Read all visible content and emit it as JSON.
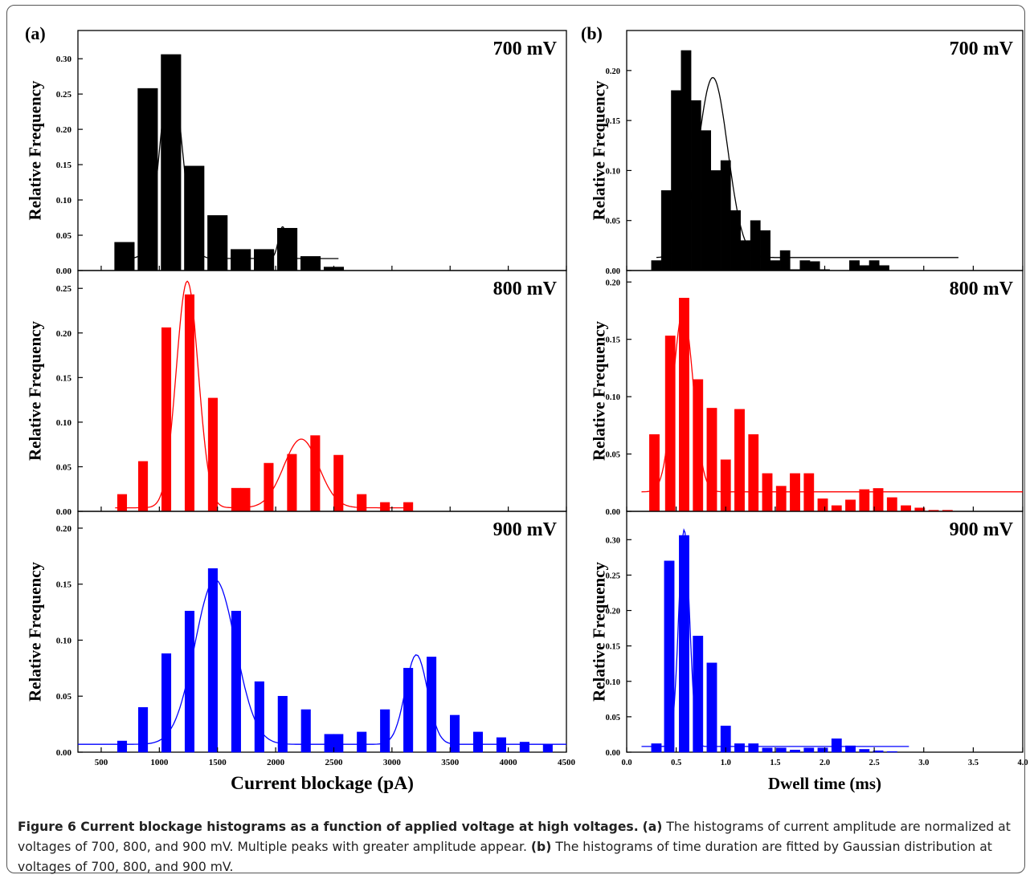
{
  "chart_data": [
    {
      "panel_label": "(a)",
      "type": "bar",
      "xlabel": "Current blockage (pA)",
      "ylabel": "Relative Frequency",
      "xlim": [
        300,
        4500
      ],
      "xticks": [
        500,
        1000,
        1500,
        2000,
        2500,
        3000,
        3500,
        4000,
        4500
      ],
      "subplots": [
        {
          "label": "700 mV",
          "color": "#000000",
          "ylim": [
            0,
            0.34
          ],
          "yticks": [
            "0.00",
            "0.05",
            "0.10",
            "0.15",
            "0.20",
            "0.25",
            "0.30"
          ],
          "bar_width": 170,
          "bars": [
            {
              "x": 700,
              "y": 0.04
            },
            {
              "x": 900,
              "y": 0.258
            },
            {
              "x": 1100,
              "y": 0.306
            },
            {
              "x": 1300,
              "y": 0.148
            },
            {
              "x": 1500,
              "y": 0.078
            },
            {
              "x": 1700,
              "y": 0.03
            },
            {
              "x": 1900,
              "y": 0.03
            },
            {
              "x": 2100,
              "y": 0.06
            },
            {
              "x": 2300,
              "y": 0.02
            },
            {
              "x": 2500,
              "y": 0.005
            }
          ],
          "fit": {
            "y0": 0.017,
            "xmin": 700,
            "xmax": 2540,
            "peaks": [
              {
                "A": 0.265,
                "xc": 1100,
                "w": 190
              },
              {
                "A": 0.045,
                "xc": 2060,
                "w": 70
              }
            ]
          }
        },
        {
          "label": "800 mV",
          "color": "#ff0000",
          "ylim": [
            0,
            0.27
          ],
          "yticks": [
            "0.00",
            "0.05",
            "0.10",
            "0.15",
            "0.20",
            "0.25"
          ],
          "bar_width": 80,
          "bars": [
            {
              "x": 680,
              "y": 0.019
            },
            {
              "x": 860,
              "y": 0.056
            },
            {
              "x": 1060,
              "y": 0.206
            },
            {
              "x": 1260,
              "y": 0.243
            },
            {
              "x": 1460,
              "y": 0.127
            },
            {
              "x": 1660,
              "y": 0.026
            },
            {
              "x": 1740,
              "y": 0.026
            },
            {
              "x": 1940,
              "y": 0.054
            },
            {
              "x": 2140,
              "y": 0.064
            },
            {
              "x": 2340,
              "y": 0.085
            },
            {
              "x": 2540,
              "y": 0.063
            },
            {
              "x": 2740,
              "y": 0.019
            },
            {
              "x": 2940,
              "y": 0.01
            },
            {
              "x": 3140,
              "y": 0.01
            }
          ],
          "fit": {
            "y0": 0.004,
            "xmin": 620,
            "xmax": 3100,
            "peaks": [
              {
                "A": 0.254,
                "xc": 1240,
                "w": 190
              },
              {
                "A": 0.077,
                "xc": 2220,
                "w": 300
              }
            ]
          }
        },
        {
          "label": "900 mV",
          "color": "#0000ff",
          "ylim": [
            0,
            0.215
          ],
          "yticks": [
            "0.00",
            "0.05",
            "0.10",
            "0.15",
            "0.20"
          ],
          "bar_width": 80,
          "bars": [
            {
              "x": 680,
              "y": 0.01
            },
            {
              "x": 860,
              "y": 0.04
            },
            {
              "x": 1060,
              "y": 0.088
            },
            {
              "x": 1260,
              "y": 0.126
            },
            {
              "x": 1460,
              "y": 0.164
            },
            {
              "x": 1660,
              "y": 0.126
            },
            {
              "x": 1860,
              "y": 0.063
            },
            {
              "x": 2060,
              "y": 0.05
            },
            {
              "x": 2260,
              "y": 0.038
            },
            {
              "x": 2460,
              "y": 0.016
            },
            {
              "x": 2540,
              "y": 0.016
            },
            {
              "x": 2740,
              "y": 0.018
            },
            {
              "x": 2940,
              "y": 0.038
            },
            {
              "x": 3140,
              "y": 0.075
            },
            {
              "x": 3340,
              "y": 0.085
            },
            {
              "x": 3540,
              "y": 0.033
            },
            {
              "x": 3740,
              "y": 0.018
            },
            {
              "x": 3940,
              "y": 0.013
            },
            {
              "x": 4140,
              "y": 0.009
            },
            {
              "x": 4340,
              "y": 0.007
            }
          ],
          "fit": {
            "y0": 0.007,
            "xmin": 300,
            "xmax": 4500,
            "peaks": [
              {
                "A": 0.147,
                "xc": 1480,
                "w": 350
              },
              {
                "A": 0.08,
                "xc": 3210,
                "w": 190
              }
            ]
          }
        }
      ]
    },
    {
      "panel_label": "(b)",
      "type": "bar",
      "xlabel": "Dwell time (ms)",
      "ylabel": "Relative Frequency",
      "xlim": [
        0.0,
        4.0
      ],
      "xticks": [
        "0.0",
        "0.5",
        "1.0",
        "1.5",
        "2.0",
        "2.5",
        "3.0",
        "3.5",
        "4.0"
      ],
      "subplots": [
        {
          "label": "700 mV",
          "color": "#000000",
          "ylim": [
            0,
            0.24
          ],
          "yticks": [
            "0.00",
            "0.05",
            "0.10",
            "0.15",
            "0.20"
          ],
          "bar_width": 0.1,
          "bars": [
            {
              "x": 0.3,
              "y": 0.01
            },
            {
              "x": 0.4,
              "y": 0.08
            },
            {
              "x": 0.5,
              "y": 0.18
            },
            {
              "x": 0.6,
              "y": 0.22
            },
            {
              "x": 0.7,
              "y": 0.17
            },
            {
              "x": 0.8,
              "y": 0.14
            },
            {
              "x": 0.9,
              "y": 0.1
            },
            {
              "x": 1.0,
              "y": 0.11
            },
            {
              "x": 1.1,
              "y": 0.06
            },
            {
              "x": 1.2,
              "y": 0.03
            },
            {
              "x": 1.3,
              "y": 0.05
            },
            {
              "x": 1.4,
              "y": 0.04
            },
            {
              "x": 1.5,
              "y": 0.01
            },
            {
              "x": 1.6,
              "y": 0.02
            },
            {
              "x": 1.7,
              "y": 0.001
            },
            {
              "x": 1.8,
              "y": 0.01
            },
            {
              "x": 1.9,
              "y": 0.009
            },
            {
              "x": 2.0,
              "y": 0.001
            },
            {
              "x": 2.1,
              "y": 0.0
            },
            {
              "x": 2.2,
              "y": 0.0
            },
            {
              "x": 2.3,
              "y": 0.01
            },
            {
              "x": 2.4,
              "y": 0.005
            },
            {
              "x": 2.5,
              "y": 0.01
            },
            {
              "x": 2.6,
              "y": 0.005
            }
          ],
          "fit": {
            "y0": 0.013,
            "xmin": 0.3,
            "xmax": 3.35,
            "peaks": [
              {
                "A": 0.18,
                "xc": 0.87,
                "w": 0.3
              }
            ]
          }
        },
        {
          "label": "800 mV",
          "color": "#ff0000",
          "ylim": [
            0,
            0.21
          ],
          "yticks": [
            "0.00",
            "0.05",
            "0.10",
            "0.15",
            "0.20"
          ],
          "bar_width": 0.1,
          "bars": [
            {
              "x": 0.28,
              "y": 0.067
            },
            {
              "x": 0.44,
              "y": 0.153
            },
            {
              "x": 0.58,
              "y": 0.186
            },
            {
              "x": 0.72,
              "y": 0.115
            },
            {
              "x": 0.86,
              "y": 0.09
            },
            {
              "x": 1.0,
              "y": 0.045
            },
            {
              "x": 1.14,
              "y": 0.089
            },
            {
              "x": 1.28,
              "y": 0.067
            },
            {
              "x": 1.42,
              "y": 0.033
            },
            {
              "x": 1.56,
              "y": 0.022
            },
            {
              "x": 1.7,
              "y": 0.033
            },
            {
              "x": 1.84,
              "y": 0.033
            },
            {
              "x": 1.98,
              "y": 0.011
            },
            {
              "x": 2.12,
              "y": 0.005
            },
            {
              "x": 2.26,
              "y": 0.01
            },
            {
              "x": 2.4,
              "y": 0.019
            },
            {
              "x": 2.54,
              "y": 0.02
            },
            {
              "x": 2.68,
              "y": 0.012
            },
            {
              "x": 2.82,
              "y": 0.005
            },
            {
              "x": 2.96,
              "y": 0.003
            },
            {
              "x": 3.1,
              "y": 0.001
            },
            {
              "x": 3.24,
              "y": 0.001
            }
          ],
          "fit": {
            "y0": 0.017,
            "xmin": 0.15,
            "xmax": 4.0,
            "peaks": [
              {
                "A": 0.158,
                "xc": 0.57,
                "w": 0.2
              }
            ]
          }
        },
        {
          "label": "900 mV",
          "color": "#0000ff",
          "ylim": [
            0,
            0.34
          ],
          "yticks": [
            "0.00",
            "0.05",
            "0.10",
            "0.15",
            "0.20",
            "0.25",
            "0.30"
          ],
          "bar_width": 0.1,
          "bars": [
            {
              "x": 0.3,
              "y": 0.012
            },
            {
              "x": 0.43,
              "y": 0.27
            },
            {
              "x": 0.58,
              "y": 0.306
            },
            {
              "x": 0.72,
              "y": 0.164
            },
            {
              "x": 0.86,
              "y": 0.126
            },
            {
              "x": 1.0,
              "y": 0.037
            },
            {
              "x": 1.14,
              "y": 0.012
            },
            {
              "x": 1.28,
              "y": 0.012
            },
            {
              "x": 1.42,
              "y": 0.006
            },
            {
              "x": 1.56,
              "y": 0.006
            },
            {
              "x": 1.7,
              "y": 0.003
            },
            {
              "x": 1.84,
              "y": 0.006
            },
            {
              "x": 1.98,
              "y": 0.006
            },
            {
              "x": 2.12,
              "y": 0.019
            },
            {
              "x": 2.26,
              "y": 0.009
            },
            {
              "x": 2.4,
              "y": 0.004
            },
            {
              "x": 2.54,
              "y": 0.002
            },
            {
              "x": 2.68,
              "y": 0.001
            }
          ],
          "fit": {
            "y0": 0.008,
            "xmin": 0.15,
            "xmax": 2.85,
            "peaks": [
              {
                "A": 0.306,
                "xc": 0.58,
                "w": 0.11
              }
            ]
          }
        }
      ]
    }
  ],
  "caption": {
    "title": "Figure 6 Current blockage histograms as a function of applied voltage at high voltages.",
    "a_label": "(a)",
    "a_text": "The histograms of current amplitude are normalized at voltages of 700, 800, and 900 mV. Multiple peaks with greater amplitude appear.",
    "b_label": "(b)",
    "b_text": "The histograms of time duration are fitted by Gaussian distribution at voltages of 700, 800, and 900 mV."
  }
}
